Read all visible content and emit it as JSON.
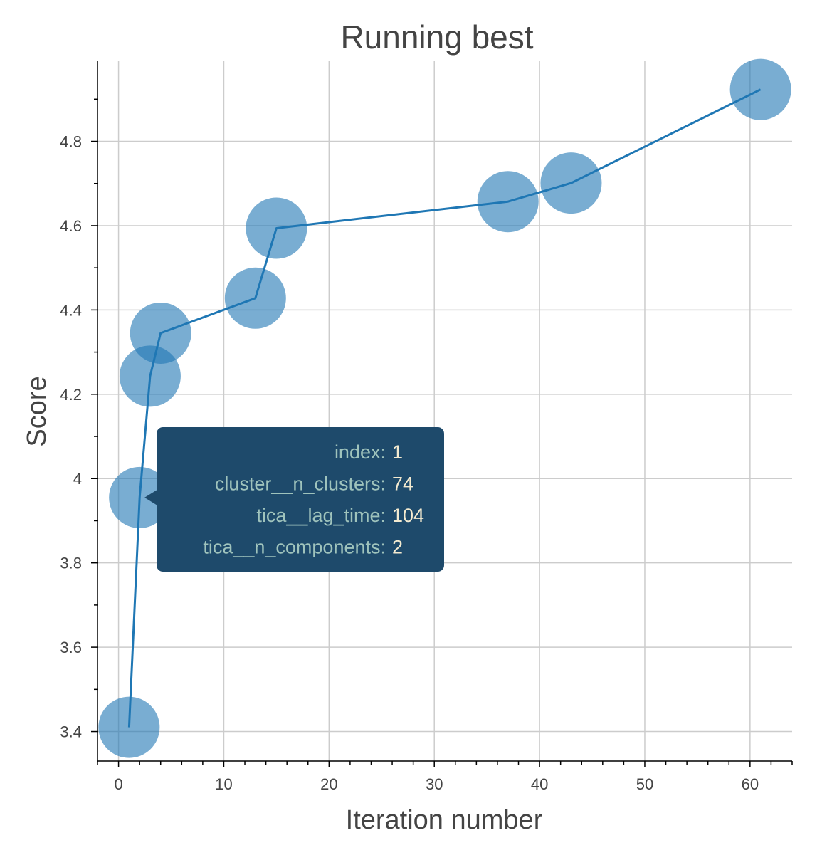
{
  "chart_data": {
    "type": "scatter",
    "title": "Running best",
    "xlabel": "Iteration number",
    "ylabel": "Score",
    "xlim": [
      -2,
      64
    ],
    "ylim": [
      3.33,
      4.99
    ],
    "x_ticks": [
      0,
      10,
      20,
      30,
      40,
      50,
      60
    ],
    "y_ticks": [
      3.4,
      3.6,
      3.8,
      4,
      4.2,
      4.4,
      4.6,
      4.8
    ],
    "y_tick_labels": [
      "3.4",
      "3.6",
      "3.8",
      "4",
      "4.2",
      "4.4",
      "4.6",
      "4.8"
    ],
    "grid": true,
    "series": [
      {
        "x": [
          1,
          2,
          3,
          4,
          13,
          15,
          37,
          43,
          61
        ],
        "y": [
          3.41,
          3.955,
          4.243,
          4.345,
          4.428,
          4.594,
          4.657,
          4.701,
          4.923
        ]
      }
    ],
    "colors": {
      "line": "#1f77b4",
      "marker": "#1f77b4",
      "grid": "#cccccc",
      "tooltip_bg": "#1e4a6b"
    },
    "tooltip": {
      "point_x": 2,
      "point_y": 3.955,
      "rows": [
        {
          "key": "index:",
          "value": "1"
        },
        {
          "key": "cluster__n_clusters:",
          "value": "74"
        },
        {
          "key": "tica__lag_time:",
          "value": "104"
        },
        {
          "key": "tica__n_components:",
          "value": "2"
        }
      ]
    }
  }
}
